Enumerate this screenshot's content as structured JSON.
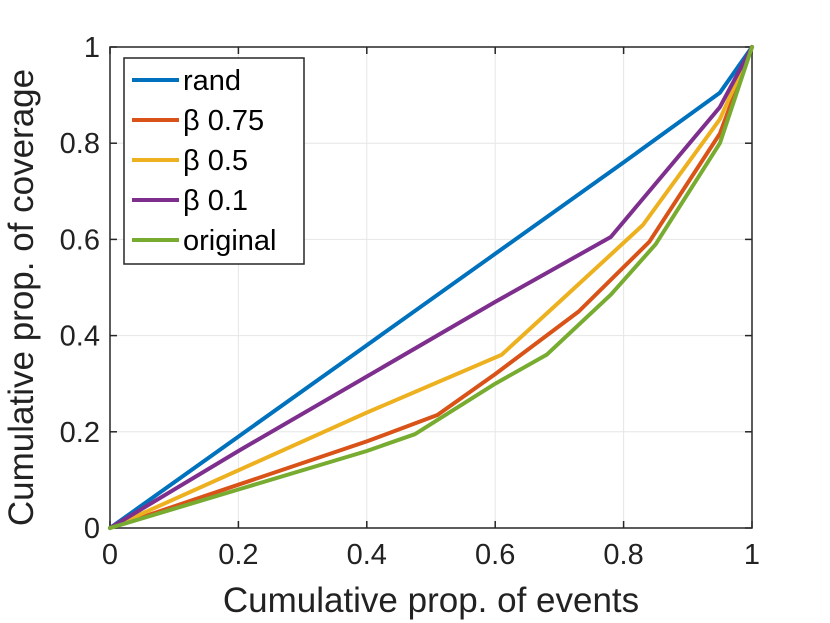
{
  "chart_data": {
    "type": "line",
    "title": "",
    "xlabel": "Cumulative prop. of events",
    "ylabel": "Cumulative prop. of coverage",
    "xlim": [
      0,
      1
    ],
    "ylim": [
      0,
      1
    ],
    "grid": true,
    "legend_position": "top-left",
    "x_ticks": [
      0,
      0.2,
      0.4,
      0.6,
      0.8,
      1
    ],
    "x_tick_labels": [
      "0",
      "0.2",
      "0.4",
      "0.6",
      "0.8",
      "1"
    ],
    "y_ticks": [
      0,
      0.2,
      0.4,
      0.6,
      0.8,
      1
    ],
    "y_tick_labels": [
      "0",
      "0.2",
      "0.4",
      "0.6",
      "0.8",
      "1"
    ],
    "series": [
      {
        "name": "rand",
        "color": "#0072BD",
        "x": [
          0,
          0.2,
          0.4,
          0.6,
          0.8,
          0.95,
          1.0
        ],
        "y": [
          0,
          0.19,
          0.38,
          0.57,
          0.76,
          0.905,
          1.0
        ]
      },
      {
        "name": "β 0.75",
        "color": "#D95319",
        "x": [
          0,
          0.2,
          0.4,
          0.51,
          0.6,
          0.73,
          0.84,
          0.95,
          1.0
        ],
        "y": [
          0,
          0.09,
          0.18,
          0.235,
          0.32,
          0.45,
          0.595,
          0.82,
          1.0
        ]
      },
      {
        "name": "β 0.5",
        "color": "#EDB120",
        "x": [
          0,
          0.2,
          0.4,
          0.61,
          0.7,
          0.83,
          0.95,
          1.0
        ],
        "y": [
          0,
          0.12,
          0.24,
          0.36,
          0.47,
          0.63,
          0.85,
          1.0
        ]
      },
      {
        "name": "β 0.1",
        "color": "#7E2F8E",
        "x": [
          0,
          0.2,
          0.4,
          0.6,
          0.78,
          0.95,
          1.0
        ],
        "y": [
          0,
          0.16,
          0.315,
          0.47,
          0.605,
          0.875,
          1.0
        ]
      },
      {
        "name": "original",
        "color": "#77AC30",
        "x": [
          0,
          0.2,
          0.4,
          0.475,
          0.6,
          0.68,
          0.78,
          0.85,
          0.95,
          1.0
        ],
        "y": [
          0,
          0.08,
          0.16,
          0.195,
          0.3,
          0.36,
          0.485,
          0.59,
          0.8,
          1.0
        ]
      }
    ]
  }
}
